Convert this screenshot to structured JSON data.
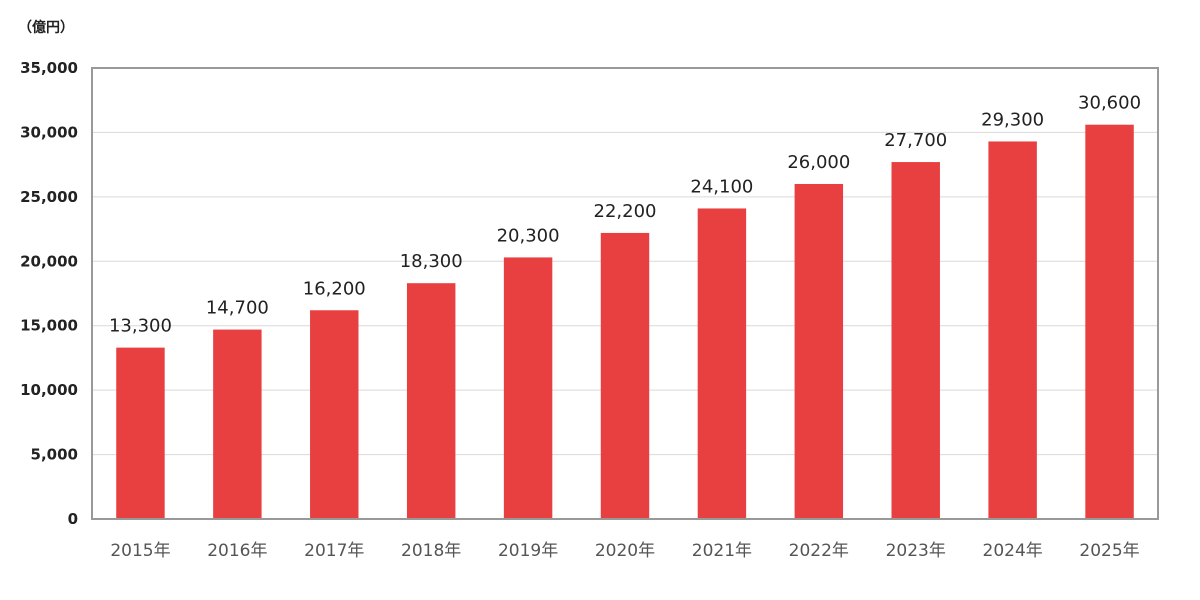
{
  "chart_data": {
    "type": "bar",
    "unit_label": "（億円）",
    "categories": [
      "2015年",
      "2016年",
      "2017年",
      "2018年",
      "2019年",
      "2020年",
      "2021年",
      "2022年",
      "2023年",
      "2024年",
      "2025年"
    ],
    "values": [
      13300,
      14700,
      16200,
      18300,
      20300,
      22200,
      24100,
      26000,
      27700,
      29300,
      30600
    ],
    "data_labels": [
      "13,300",
      "14,700",
      "16,200",
      "18,300",
      "20,300",
      "22,200",
      "24,100",
      "26,000",
      "27,700",
      "29,300",
      "30,600"
    ],
    "yticks": [
      "0",
      "5,000",
      "10,000",
      "15,000",
      "20,000",
      "25,000",
      "30,000",
      "35,000"
    ],
    "ylim": [
      0,
      35000
    ],
    "grid": true,
    "legend": "none",
    "colors": {
      "bar": "#e84040",
      "grid": "#d9d9d9",
      "frame": "#999999"
    }
  }
}
